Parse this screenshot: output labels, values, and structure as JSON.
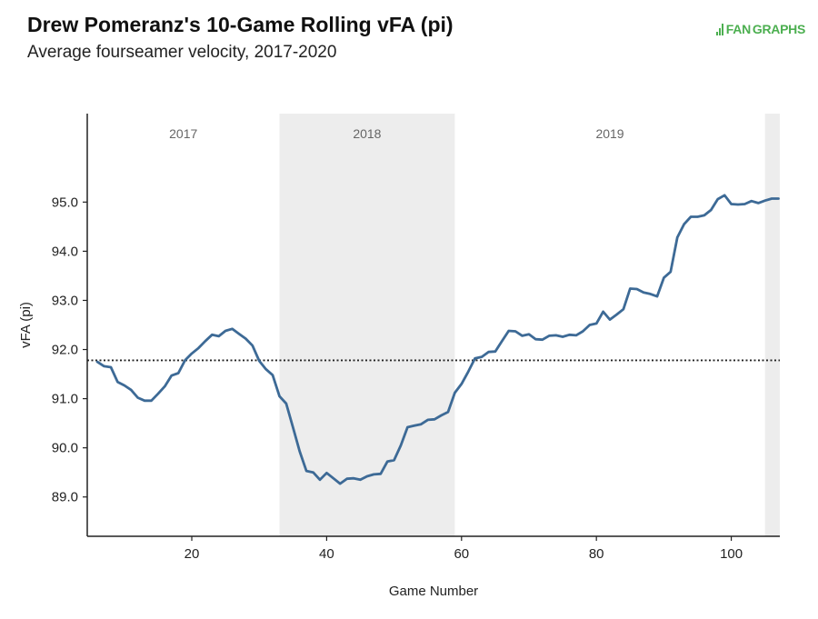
{
  "header": {
    "title": "Drew Pomeranz's 10-Game Rolling vFA (pi)",
    "subtitle": "Average fourseamer velocity, 2017-2020"
  },
  "logo": {
    "fan": "FAN",
    "graphs": "GRAPHS",
    "color": "#4caf50"
  },
  "colors": {
    "line": "#3d6a96",
    "shade": "#ededed",
    "axis": "#222222",
    "reference": "#222222"
  },
  "chart_data": {
    "type": "line",
    "xlabel": "Game Number",
    "ylabel": "vFA (pi)",
    "xlim": [
      4.5,
      107.2
    ],
    "ylim": [
      88.2,
      96.8
    ],
    "xticks": [
      20,
      40,
      60,
      80,
      100
    ],
    "xtick_labels": [
      "20",
      "40",
      "60",
      "80",
      "100"
    ],
    "yticks": [
      89,
      90,
      91,
      92,
      93,
      94,
      95
    ],
    "ytick_labels": [
      "89.0",
      "90.0",
      "91.0",
      "92.0",
      "93.0",
      "94.0",
      "95.0"
    ],
    "reference_line": {
      "y": 91.78,
      "style": "dotted"
    },
    "seasons": [
      {
        "label": "2017",
        "start": 4.5,
        "end": 33,
        "shaded": false
      },
      {
        "label": "2018",
        "start": 33,
        "end": 59,
        "shaded": true
      },
      {
        "label": "2019",
        "start": 59,
        "end": 105,
        "shaded": false
      },
      {
        "label": "",
        "start": 105,
        "end": 107.2,
        "shaded": true
      }
    ],
    "series": [
      {
        "name": "10-Game Rolling vFA",
        "x": [
          6,
          7,
          8,
          9,
          10,
          11,
          12,
          13,
          14,
          15,
          16,
          17,
          18,
          19,
          20,
          21,
          22,
          23,
          24,
          25,
          26,
          27,
          28,
          29,
          30,
          31,
          32,
          33,
          34,
          35,
          36,
          37,
          38,
          39,
          40,
          41,
          42,
          43,
          44,
          45,
          46,
          47,
          48,
          49,
          50,
          51,
          52,
          53,
          54,
          55,
          56,
          57,
          58,
          59,
          60,
          61,
          62,
          63,
          64,
          65,
          66,
          67,
          68,
          69,
          70,
          71,
          72,
          73,
          74,
          75,
          76,
          77,
          78,
          79,
          80,
          81,
          82,
          83,
          84,
          85,
          86,
          87,
          88,
          89,
          90,
          91,
          92,
          93,
          94,
          95,
          96,
          97,
          98,
          99,
          100,
          101,
          102,
          103,
          104,
          105,
          106,
          107
        ],
        "y": [
          91.75,
          91.66,
          91.64,
          91.34,
          91.27,
          91.18,
          91.02,
          90.96,
          90.96,
          91.1,
          91.25,
          91.47,
          91.52,
          91.78,
          91.92,
          92.03,
          92.17,
          92.3,
          92.27,
          92.38,
          92.42,
          92.32,
          92.22,
          92.08,
          91.77,
          91.6,
          91.48,
          91.05,
          90.9,
          90.42,
          89.93,
          89.53,
          89.5,
          89.35,
          89.49,
          89.38,
          89.27,
          89.37,
          89.38,
          89.35,
          89.42,
          89.46,
          89.47,
          89.72,
          89.75,
          90.05,
          90.42,
          90.45,
          90.48,
          90.57,
          90.58,
          90.66,
          90.73,
          91.12,
          91.3,
          91.55,
          91.82,
          91.85,
          91.95,
          91.96,
          92.17,
          92.38,
          92.37,
          92.28,
          92.31,
          92.21,
          92.2,
          92.28,
          92.29,
          92.26,
          92.3,
          92.29,
          92.37,
          92.5,
          92.53,
          92.77,
          92.61,
          92.71,
          92.82,
          93.24,
          93.23,
          93.16,
          93.13,
          93.08,
          93.46,
          93.58,
          94.28,
          94.55,
          94.7,
          94.7,
          94.73,
          94.84,
          95.06,
          95.14,
          94.96,
          94.95,
          94.96,
          95.02,
          94.98,
          95.03,
          95.07,
          95.07
        ]
      }
    ]
  }
}
